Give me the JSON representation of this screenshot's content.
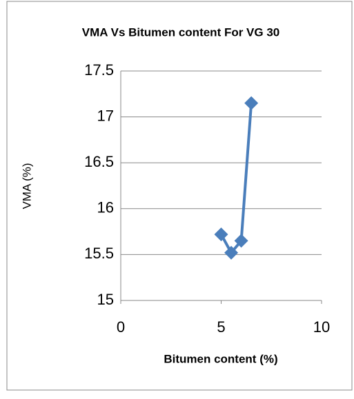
{
  "chart_data": {
    "type": "scatter",
    "title": "VMA Vs Bitumen content For VG 30",
    "x_label": "Bitumen content (%)",
    "y_label": "VMA (%)",
    "series": [
      {
        "name": "VMA",
        "color": "#4a7ebb",
        "x": [
          5.0,
          5.5,
          6.0,
          6.5
        ],
        "values": [
          15.72,
          15.52,
          15.65,
          17.15
        ]
      }
    ],
    "xlim": [
      0,
      10
    ],
    "xticks": [
      0,
      5,
      10
    ],
    "ylim": [
      15,
      17.5
    ],
    "yticks": [
      15,
      15.5,
      16,
      16.5,
      17,
      17.5
    ],
    "grid": true
  }
}
